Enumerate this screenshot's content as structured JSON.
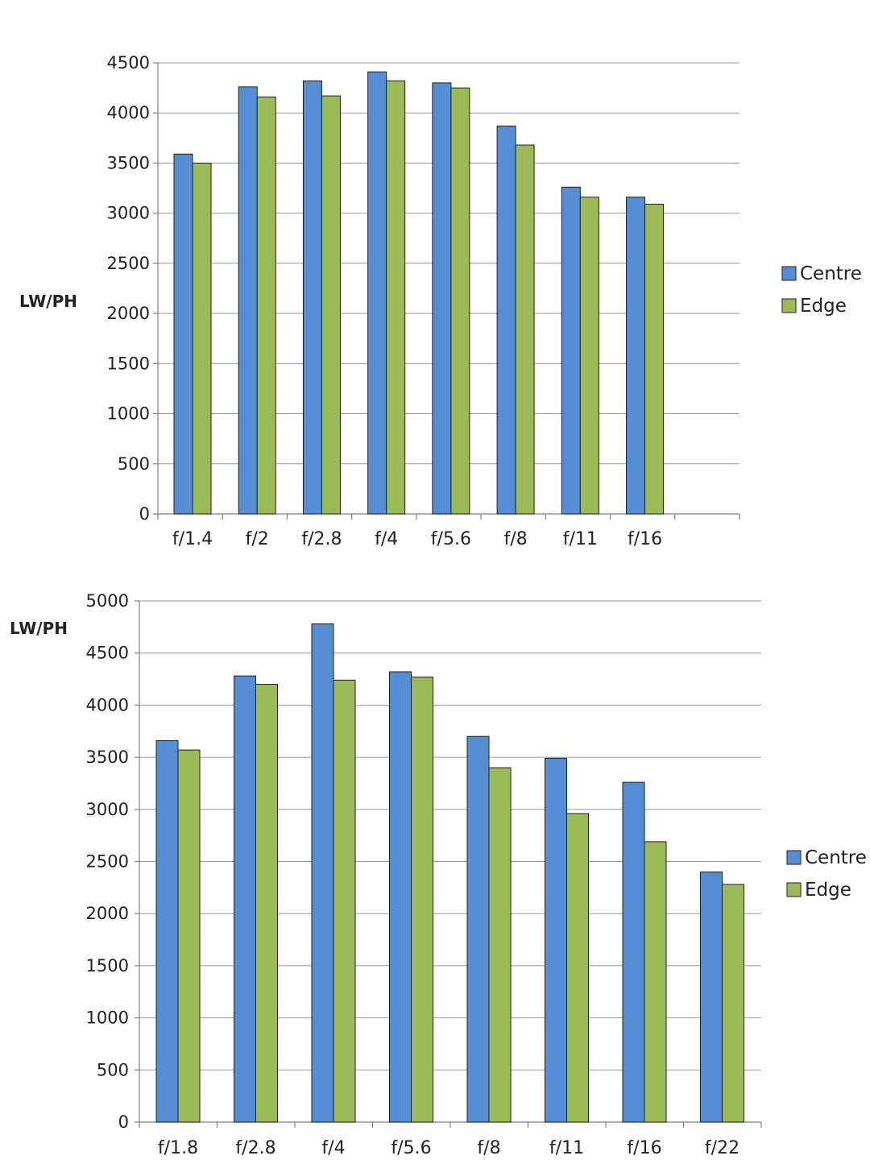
{
  "colors": {
    "centre": "#558ed5",
    "edge": "#9bbb59",
    "grid": "#9a9a9a"
  },
  "chart_data": [
    {
      "type": "bar",
      "categories": [
        "f/1.4",
        "f/2",
        "f/2.8",
        "f/4",
        "f/5.6",
        "f/8",
        "f/11",
        "f/16"
      ],
      "series": [
        {
          "name": "Centre",
          "values": [
            3590,
            4260,
            4320,
            4410,
            4300,
            3870,
            3260,
            3160
          ]
        },
        {
          "name": "Edge",
          "values": [
            3500,
            4160,
            4170,
            4320,
            4250,
            3680,
            3160,
            3090
          ]
        }
      ],
      "title": "",
      "xlabel": "",
      "ylabel": "LW/PH",
      "ylim": [
        0,
        4500
      ],
      "yticks": [
        0,
        500,
        1000,
        1500,
        2000,
        2500,
        3000,
        3500,
        4000,
        4500
      ],
      "grid": true,
      "legend": "right"
    },
    {
      "type": "bar",
      "categories": [
        "f/1.8",
        "f/2.8",
        "f/4",
        "f/5.6",
        "f/8",
        "f/11",
        "f/16",
        "f/22"
      ],
      "series": [
        {
          "name": "Centre",
          "values": [
            3660,
            4280,
            4780,
            4320,
            3700,
            3490,
            3260,
            2400
          ]
        },
        {
          "name": "Edge",
          "values": [
            3570,
            4200,
            4240,
            4270,
            3400,
            2960,
            2690,
            2280
          ]
        }
      ],
      "title": "",
      "xlabel": "",
      "ylabel": "LW/PH",
      "ylim": [
        0,
        5000
      ],
      "yticks": [
        0,
        500,
        1000,
        1500,
        2000,
        2500,
        3000,
        3500,
        4000,
        4500,
        5000
      ],
      "grid": true,
      "legend": "right"
    }
  ]
}
